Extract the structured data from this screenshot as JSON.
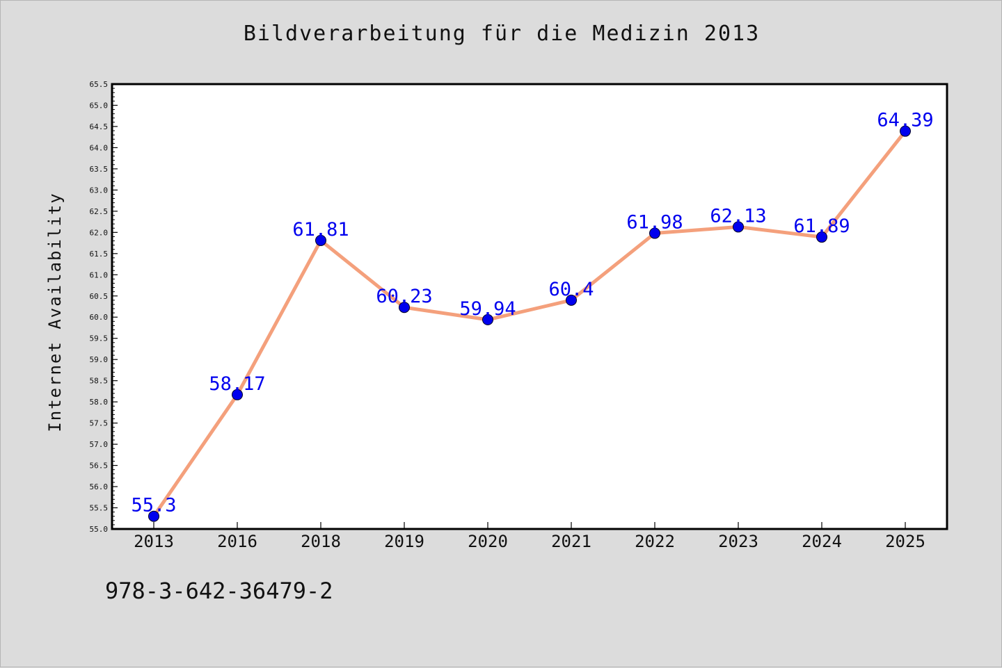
{
  "title": "Bildverarbeitung für die Medizin 2013",
  "footer": "978-3-642-36479-2",
  "colors": {
    "background": "#dcdcdc",
    "plot_bg": "#ffffff",
    "line": "#f4a07c",
    "marker": "#0000ee",
    "label": "#0000ee"
  },
  "chart_data": {
    "type": "line",
    "title": "Bildverarbeitung für die Medizin 2013",
    "xlabel": "",
    "ylabel": "Internet Availability",
    "categories": [
      "2013",
      "2016",
      "2018",
      "2019",
      "2020",
      "2021",
      "2022",
      "2023",
      "2024",
      "2025"
    ],
    "series": [
      {
        "values": [
          55.3,
          58.17,
          61.81,
          60.23,
          59.94,
          60.4,
          61.98,
          62.13,
          61.89,
          64.39
        ],
        "labels": [
          "55.3",
          "58.17",
          "61.81",
          "60.23",
          "59.94",
          "60.4",
          "61.98",
          "62.13",
          "61.89",
          "64.39"
        ]
      }
    ],
    "ylim": [
      55.0,
      65.5
    ],
    "ytick_step": 0.5,
    "grid": false,
    "legend": "none"
  }
}
